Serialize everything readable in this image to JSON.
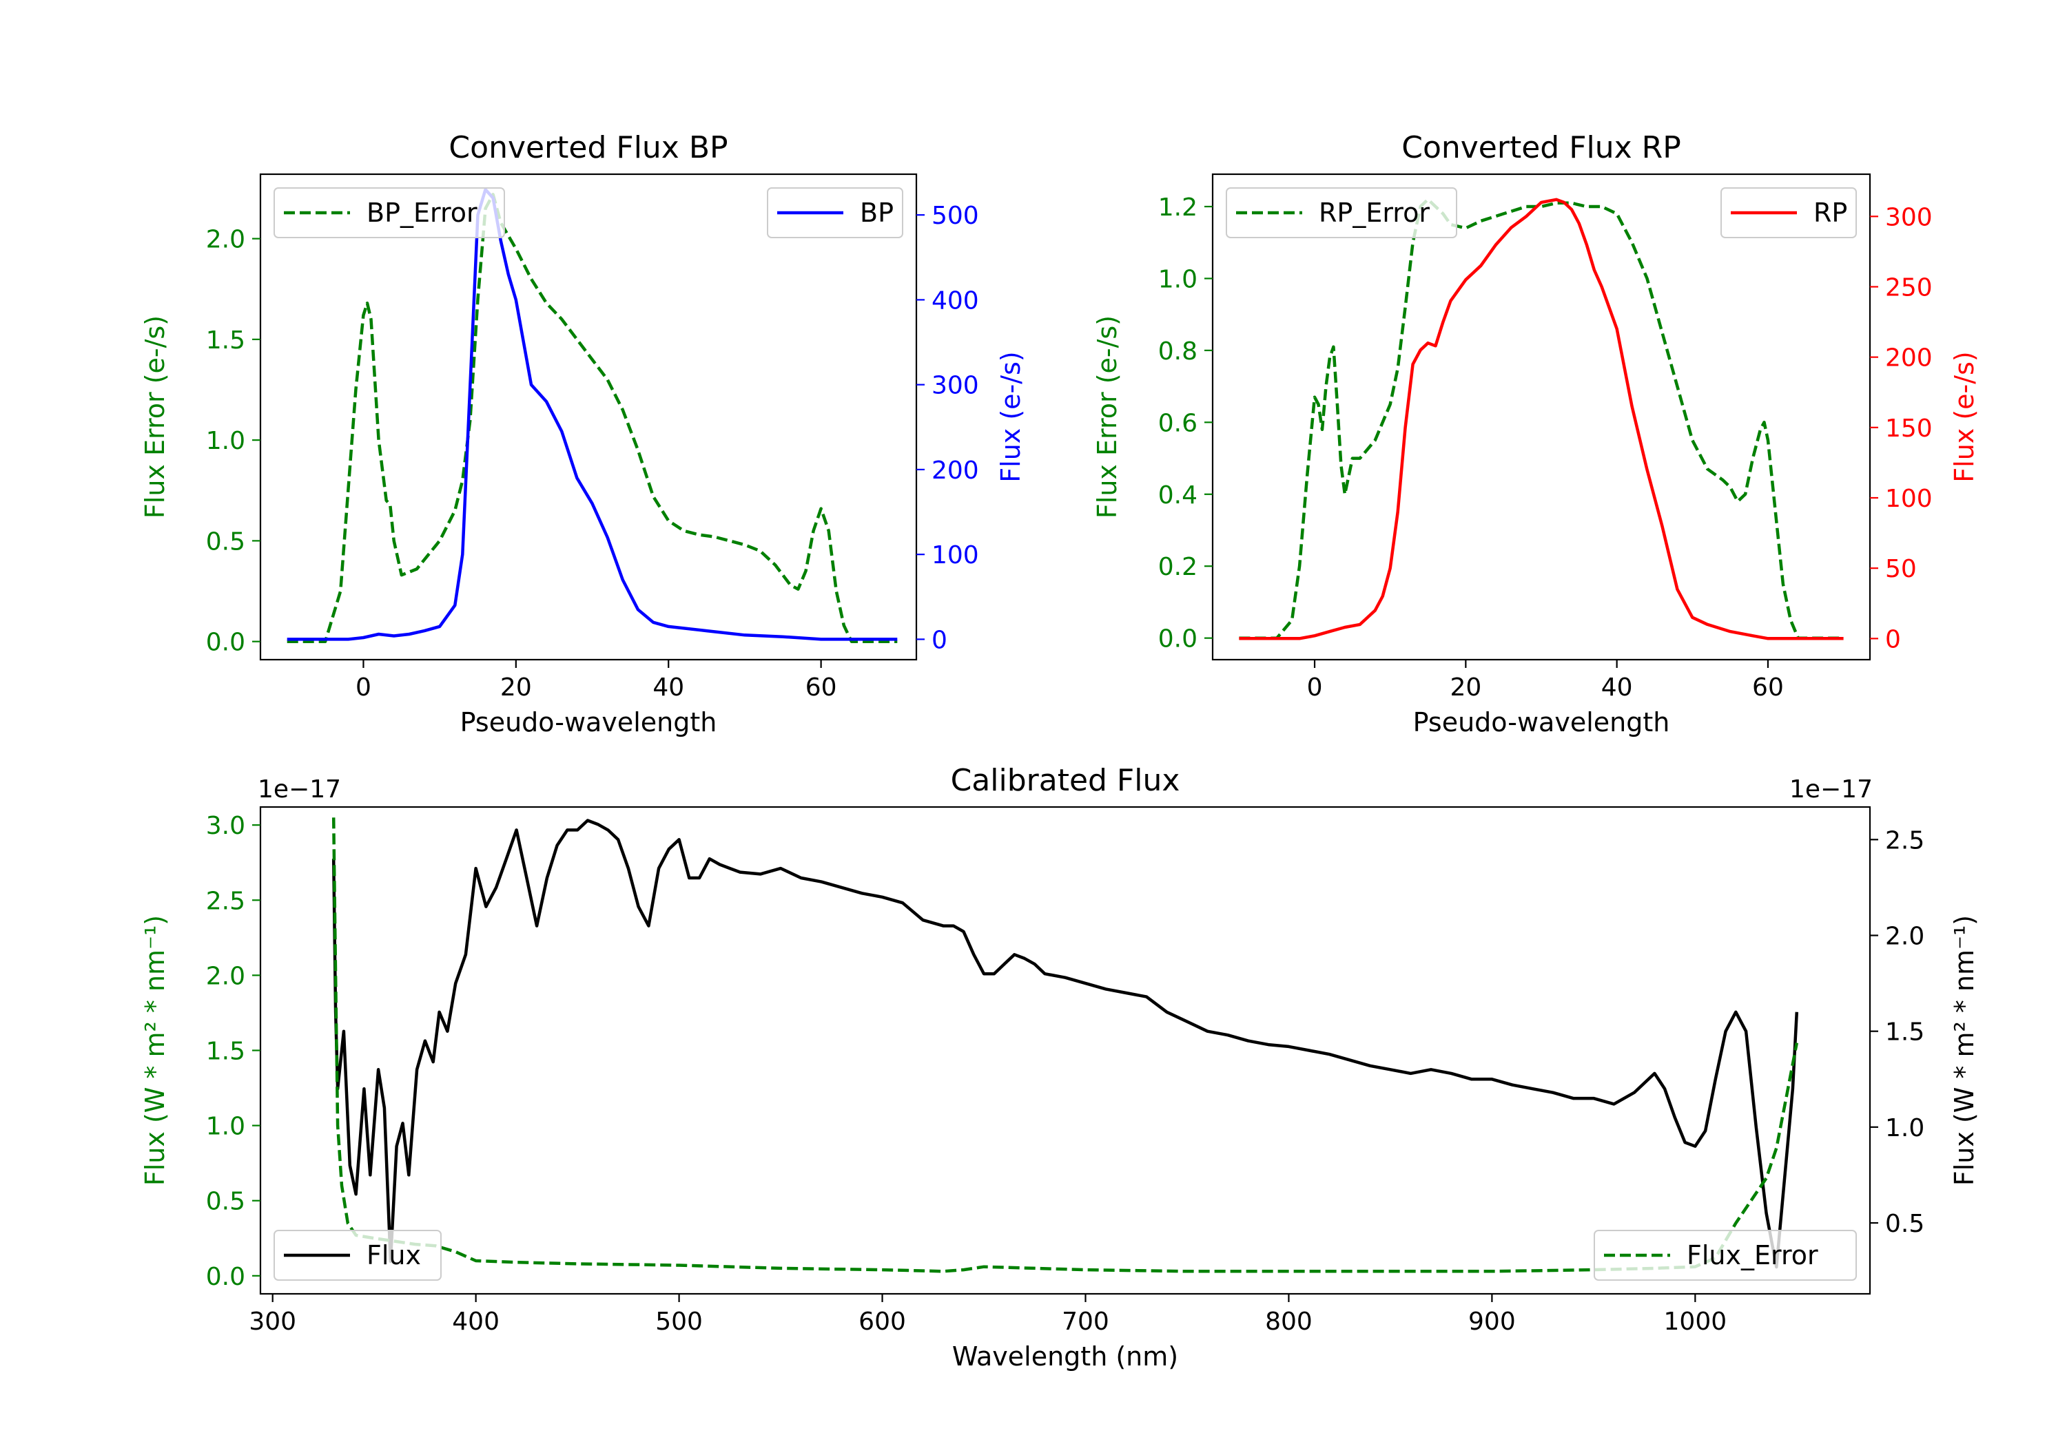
{
  "chart_data": [
    {
      "type": "line",
      "title": "Converted Flux BP",
      "xlabel": "Pseudo-wavelength",
      "xlim": [
        -13.5,
        72.5
      ],
      "x_ticks": [
        0,
        20,
        40,
        60
      ],
      "left_axis": {
        "label": "Flux Error (e-/s)",
        "color": "#008000",
        "ylim": [
          -0.09,
          2.32
        ],
        "ticks": [
          0.0,
          0.5,
          1.0,
          1.5,
          2.0
        ],
        "tick_labels": [
          "0.0",
          "0.5",
          "1.0",
          "1.5",
          "2.0"
        ]
      },
      "right_axis": {
        "label": "Flux (e-/s)",
        "color": "#0000ff",
        "ylim": [
          -24,
          548
        ],
        "ticks": [
          0,
          100,
          200,
          300,
          400,
          500
        ],
        "tick_labels": [
          "0",
          "100",
          "200",
          "300",
          "400",
          "500"
        ]
      },
      "series": [
        {
          "name": "BP_Error",
          "axis": "left",
          "color": "#008000",
          "style": "dashed",
          "x": [
            -10,
            -5,
            -3,
            -1,
            0,
            0.5,
            1,
            2,
            3,
            3.5,
            4,
            5,
            7,
            10,
            12,
            13,
            14,
            15,
            16,
            17,
            18,
            20,
            22,
            24,
            26,
            28,
            30,
            32,
            34,
            36,
            38,
            40,
            42,
            44,
            46,
            48,
            50,
            52,
            54,
            56,
            57,
            58,
            59,
            60,
            61,
            62,
            63,
            64,
            66,
            70
          ],
          "y": [
            0.0,
            0.0,
            0.25,
            1.25,
            1.62,
            1.68,
            1.6,
            1.0,
            0.7,
            0.68,
            0.5,
            0.33,
            0.36,
            0.5,
            0.65,
            0.8,
            1.1,
            1.7,
            2.15,
            2.22,
            2.08,
            1.95,
            1.8,
            1.68,
            1.6,
            1.5,
            1.4,
            1.3,
            1.15,
            0.95,
            0.72,
            0.6,
            0.55,
            0.53,
            0.52,
            0.5,
            0.48,
            0.45,
            0.38,
            0.28,
            0.26,
            0.35,
            0.55,
            0.66,
            0.55,
            0.25,
            0.08,
            0.0,
            0.0,
            0.0
          ]
        },
        {
          "name": "BP",
          "axis": "right",
          "color": "#0000ff",
          "style": "solid",
          "x": [
            -10,
            -5,
            -2,
            0,
            2,
            4,
            6,
            8,
            10,
            12,
            13,
            14,
            15,
            16,
            17,
            18,
            19,
            20,
            22,
            24,
            26,
            28,
            30,
            32,
            34,
            36,
            38,
            40,
            45,
            50,
            55,
            60,
            65,
            70
          ],
          "y": [
            0,
            0,
            0,
            2,
            6,
            4,
            6,
            10,
            15,
            40,
            100,
            300,
            500,
            530,
            520,
            470,
            430,
            400,
            300,
            280,
            245,
            190,
            160,
            120,
            70,
            35,
            20,
            15,
            10,
            5,
            3,
            0,
            0,
            0
          ]
        }
      ],
      "legends": [
        {
          "entries": [
            "BP_Error"
          ],
          "position": "upper left"
        },
        {
          "entries": [
            "BP"
          ],
          "position": "upper right"
        }
      ]
    },
    {
      "type": "line",
      "title": "Converted Flux RP",
      "xlabel": "Pseudo-wavelength",
      "xlim": [
        -13.5,
        73.5
      ],
      "x_ticks": [
        0,
        20,
        40,
        60
      ],
      "left_axis": {
        "label": "Flux Error (e-/s)",
        "color": "#008000",
        "ylim": [
          -0.06,
          1.29
        ],
        "ticks": [
          0.0,
          0.2,
          0.4,
          0.6,
          0.8,
          1.0,
          1.2
        ],
        "tick_labels": [
          "0.0",
          "0.2",
          "0.4",
          "0.6",
          "0.8",
          "1.0",
          "1.2"
        ]
      },
      "right_axis": {
        "label": "Flux (e-/s)",
        "color": "#ff0000",
        "ylim": [
          -15,
          330
        ],
        "ticks": [
          0,
          50,
          100,
          150,
          200,
          250,
          300
        ],
        "tick_labels": [
          "0",
          "50",
          "100",
          "150",
          "200",
          "250",
          "300"
        ]
      },
      "series": [
        {
          "name": "RP_Error",
          "axis": "left",
          "color": "#008000",
          "style": "dashed",
          "x": [
            -10,
            -5,
            -3,
            -2,
            -1,
            0,
            0.5,
            1,
            1.5,
            2,
            2.5,
            3,
            3.5,
            4,
            5,
            6,
            8,
            10,
            11,
            12,
            13,
            14,
            15,
            16,
            17,
            18,
            20,
            22,
            25,
            28,
            30,
            32,
            34,
            36,
            38,
            40,
            42,
            44,
            46,
            48,
            50,
            52,
            54,
            55,
            56,
            57,
            58,
            59,
            59.5,
            60,
            61,
            62,
            63,
            64,
            66,
            70
          ],
          "y": [
            0.0,
            0.0,
            0.05,
            0.2,
            0.45,
            0.67,
            0.65,
            0.58,
            0.7,
            0.78,
            0.81,
            0.65,
            0.48,
            0.4,
            0.5,
            0.5,
            0.55,
            0.65,
            0.75,
            0.92,
            1.1,
            1.2,
            1.22,
            1.2,
            1.18,
            1.15,
            1.14,
            1.16,
            1.18,
            1.2,
            1.2,
            1.21,
            1.21,
            1.2,
            1.2,
            1.18,
            1.1,
            1.0,
            0.85,
            0.7,
            0.55,
            0.47,
            0.44,
            0.42,
            0.38,
            0.4,
            0.5,
            0.58,
            0.6,
            0.55,
            0.35,
            0.15,
            0.05,
            0.0,
            0.0,
            0.0
          ]
        },
        {
          "name": "RP",
          "axis": "right",
          "color": "#ff0000",
          "style": "solid",
          "x": [
            -10,
            -5,
            -2,
            0,
            2,
            4,
            6,
            8,
            9,
            10,
            11,
            12,
            13,
            14,
            15,
            16,
            17,
            18,
            20,
            22,
            24,
            26,
            28,
            30,
            32,
            33,
            34,
            35,
            36,
            37,
            38,
            40,
            42,
            44,
            46,
            48,
            50,
            52,
            55,
            58,
            60,
            65,
            70
          ],
          "y": [
            0,
            0,
            0,
            2,
            5,
            8,
            10,
            20,
            30,
            50,
            90,
            150,
            195,
            205,
            210,
            208,
            225,
            240,
            255,
            265,
            280,
            292,
            300,
            310,
            312,
            310,
            305,
            295,
            280,
            262,
            250,
            220,
            165,
            120,
            80,
            35,
            15,
            10,
            5,
            2,
            0,
            0,
            0
          ]
        }
      ],
      "legends": [
        {
          "entries": [
            "RP_Error"
          ],
          "position": "upper left"
        },
        {
          "entries": [
            "RP"
          ],
          "position": "upper right"
        }
      ]
    },
    {
      "type": "line",
      "title": "Calibrated Flux",
      "xlabel": "Wavelength (nm)",
      "xlim": [
        294,
        1086
      ],
      "x_ticks": [
        300,
        400,
        500,
        600,
        700,
        800,
        900,
        1000
      ],
      "left_axis": {
        "label": "Flux (W * m² * nm⁻¹)",
        "color": "#008000",
        "offset_text": "1e−17",
        "ylim": [
          -0.12,
          3.12
        ],
        "ticks": [
          0.0,
          0.5,
          1.0,
          1.5,
          2.0,
          2.5,
          3.0
        ],
        "tick_labels": [
          "0.0",
          "0.5",
          "1.0",
          "1.5",
          "2.0",
          "2.5",
          "3.0"
        ]
      },
      "right_axis": {
        "label": "Flux (W * m² * nm⁻¹)",
        "color": "#000000",
        "offset_text": "1e−17",
        "ylim": [
          0.13,
          2.67
        ],
        "ticks": [
          0.5,
          1.0,
          1.5,
          2.0,
          2.5
        ],
        "tick_labels": [
          "0.5",
          "1.0",
          "1.5",
          "2.0",
          "2.5"
        ]
      },
      "series": [
        {
          "name": "Flux",
          "axis": "right",
          "color": "#000000",
          "style": "solid",
          "x": [
            330,
            331,
            332,
            335,
            338,
            341,
            345,
            348,
            352,
            355,
            358,
            361,
            364,
            367,
            371,
            375,
            379,
            382,
            386,
            390,
            395,
            400,
            405,
            410,
            415,
            420,
            425,
            430,
            435,
            440,
            445,
            450,
            455,
            460,
            465,
            470,
            475,
            480,
            485,
            490,
            495,
            500,
            505,
            510,
            515,
            520,
            525,
            530,
            540,
            550,
            560,
            570,
            580,
            590,
            600,
            610,
            620,
            630,
            635,
            640,
            645,
            650,
            655,
            660,
            665,
            670,
            675,
            680,
            690,
            700,
            710,
            720,
            730,
            740,
            750,
            760,
            770,
            780,
            790,
            800,
            810,
            820,
            830,
            840,
            850,
            860,
            870,
            880,
            890,
            900,
            910,
            920,
            930,
            940,
            950,
            960,
            970,
            980,
            985,
            990,
            995,
            1000,
            1005,
            1010,
            1015,
            1020,
            1025,
            1030,
            1035,
            1040,
            1045,
            1048,
            1050
          ],
          "y": [
            2.4,
            1.6,
            1.2,
            1.5,
            0.8,
            0.65,
            1.2,
            0.75,
            1.3,
            1.1,
            0.3,
            0.9,
            1.02,
            0.75,
            1.3,
            1.45,
            1.34,
            1.6,
            1.5,
            1.75,
            1.9,
            2.35,
            2.15,
            2.25,
            2.4,
            2.55,
            2.3,
            2.05,
            2.3,
            2.47,
            2.55,
            2.55,
            2.6,
            2.58,
            2.55,
            2.5,
            2.35,
            2.15,
            2.05,
            2.35,
            2.45,
            2.5,
            2.3,
            2.3,
            2.4,
            2.37,
            2.35,
            2.33,
            2.32,
            2.35,
            2.3,
            2.28,
            2.25,
            2.22,
            2.2,
            2.17,
            2.08,
            2.05,
            2.05,
            2.02,
            1.9,
            1.8,
            1.8,
            1.85,
            1.9,
            1.88,
            1.85,
            1.8,
            1.78,
            1.75,
            1.72,
            1.7,
            1.68,
            1.6,
            1.55,
            1.5,
            1.48,
            1.45,
            1.43,
            1.42,
            1.4,
            1.38,
            1.35,
            1.32,
            1.3,
            1.28,
            1.3,
            1.28,
            1.25,
            1.25,
            1.22,
            1.2,
            1.18,
            1.15,
            1.15,
            1.12,
            1.18,
            1.28,
            1.2,
            1.05,
            0.92,
            0.9,
            0.98,
            1.25,
            1.5,
            1.6,
            1.5,
            1.0,
            0.55,
            0.27,
            0.85,
            1.2,
            1.6
          ]
        },
        {
          "name": "Flux_Error",
          "axis": "left",
          "color": "#008000",
          "style": "dashed",
          "x": [
            330,
            331,
            332,
            334,
            337,
            341,
            350,
            360,
            370,
            380,
            390,
            400,
            420,
            450,
            500,
            550,
            600,
            630,
            640,
            650,
            700,
            750,
            800,
            850,
            900,
            950,
            980,
            1000,
            1010,
            1020,
            1030,
            1035,
            1040,
            1045,
            1050
          ],
          "y": [
            3.05,
            2.0,
            1.0,
            0.6,
            0.35,
            0.27,
            0.25,
            0.23,
            0.21,
            0.2,
            0.16,
            0.1,
            0.09,
            0.08,
            0.07,
            0.05,
            0.04,
            0.03,
            0.04,
            0.06,
            0.04,
            0.03,
            0.03,
            0.03,
            0.03,
            0.04,
            0.05,
            0.06,
            0.12,
            0.35,
            0.55,
            0.65,
            0.85,
            1.2,
            1.55
          ]
        }
      ],
      "legends": [
        {
          "entries": [
            "Flux"
          ],
          "position": "lower left"
        },
        {
          "entries": [
            "Flux_Error"
          ],
          "position": "lower right"
        }
      ]
    }
  ]
}
